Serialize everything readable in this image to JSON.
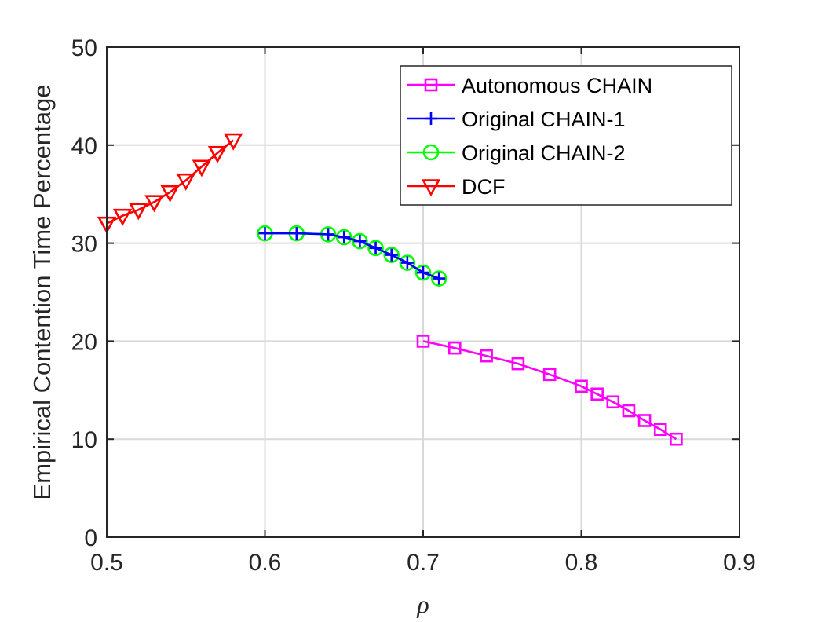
{
  "chart_data": {
    "type": "line",
    "xlabel": "ρ",
    "ylabel": "Empirical Contention Time Percentage",
    "xlim": [
      0.5,
      0.9
    ],
    "ylim": [
      0,
      50
    ],
    "xticks": [
      0.5,
      0.6,
      0.7,
      0.8,
      0.9
    ],
    "xtick_labels": [
      "0.5",
      "0.6",
      "0.7",
      "0.8",
      "0.9"
    ],
    "yticks": [
      0,
      10,
      20,
      30,
      40,
      50
    ],
    "ytick_labels": [
      "0",
      "10",
      "20",
      "30",
      "40",
      "50"
    ],
    "grid": true,
    "legend_position": "top-right",
    "series": [
      {
        "name": "Autonomous CHAIN",
        "color": "#ff00ff",
        "marker": "square",
        "x": [
          0.7,
          0.72,
          0.74,
          0.76,
          0.78,
          0.8,
          0.81,
          0.82,
          0.83,
          0.84,
          0.85,
          0.86
        ],
        "y": [
          20.0,
          19.3,
          18.5,
          17.7,
          16.6,
          15.4,
          14.6,
          13.8,
          12.9,
          11.9,
          11.0,
          10.0
        ]
      },
      {
        "name": "Original CHAIN-1",
        "color": "#0000ff",
        "marker": "plus",
        "x": [
          0.6,
          0.62,
          0.64,
          0.65,
          0.66,
          0.67,
          0.68,
          0.69,
          0.7,
          0.71
        ],
        "y": [
          31.0,
          31.0,
          30.9,
          30.6,
          30.2,
          29.5,
          28.8,
          28.0,
          27.0,
          26.4
        ]
      },
      {
        "name": "Original CHAIN-2",
        "color": "#00ff00",
        "marker": "circle",
        "x": [
          0.6,
          0.62,
          0.64,
          0.65,
          0.66,
          0.67,
          0.68,
          0.69,
          0.7,
          0.71
        ],
        "y": [
          31.0,
          31.0,
          30.9,
          30.6,
          30.2,
          29.5,
          28.8,
          28.0,
          27.0,
          26.4
        ]
      },
      {
        "name": "DCF",
        "color": "#ff0000",
        "marker": "triangle-down",
        "x": [
          0.5,
          0.51,
          0.52,
          0.53,
          0.54,
          0.55,
          0.56,
          0.57,
          0.58
        ],
        "y": [
          32.0,
          32.8,
          33.4,
          34.2,
          35.2,
          36.4,
          37.8,
          39.2,
          40.5
        ]
      }
    ]
  }
}
